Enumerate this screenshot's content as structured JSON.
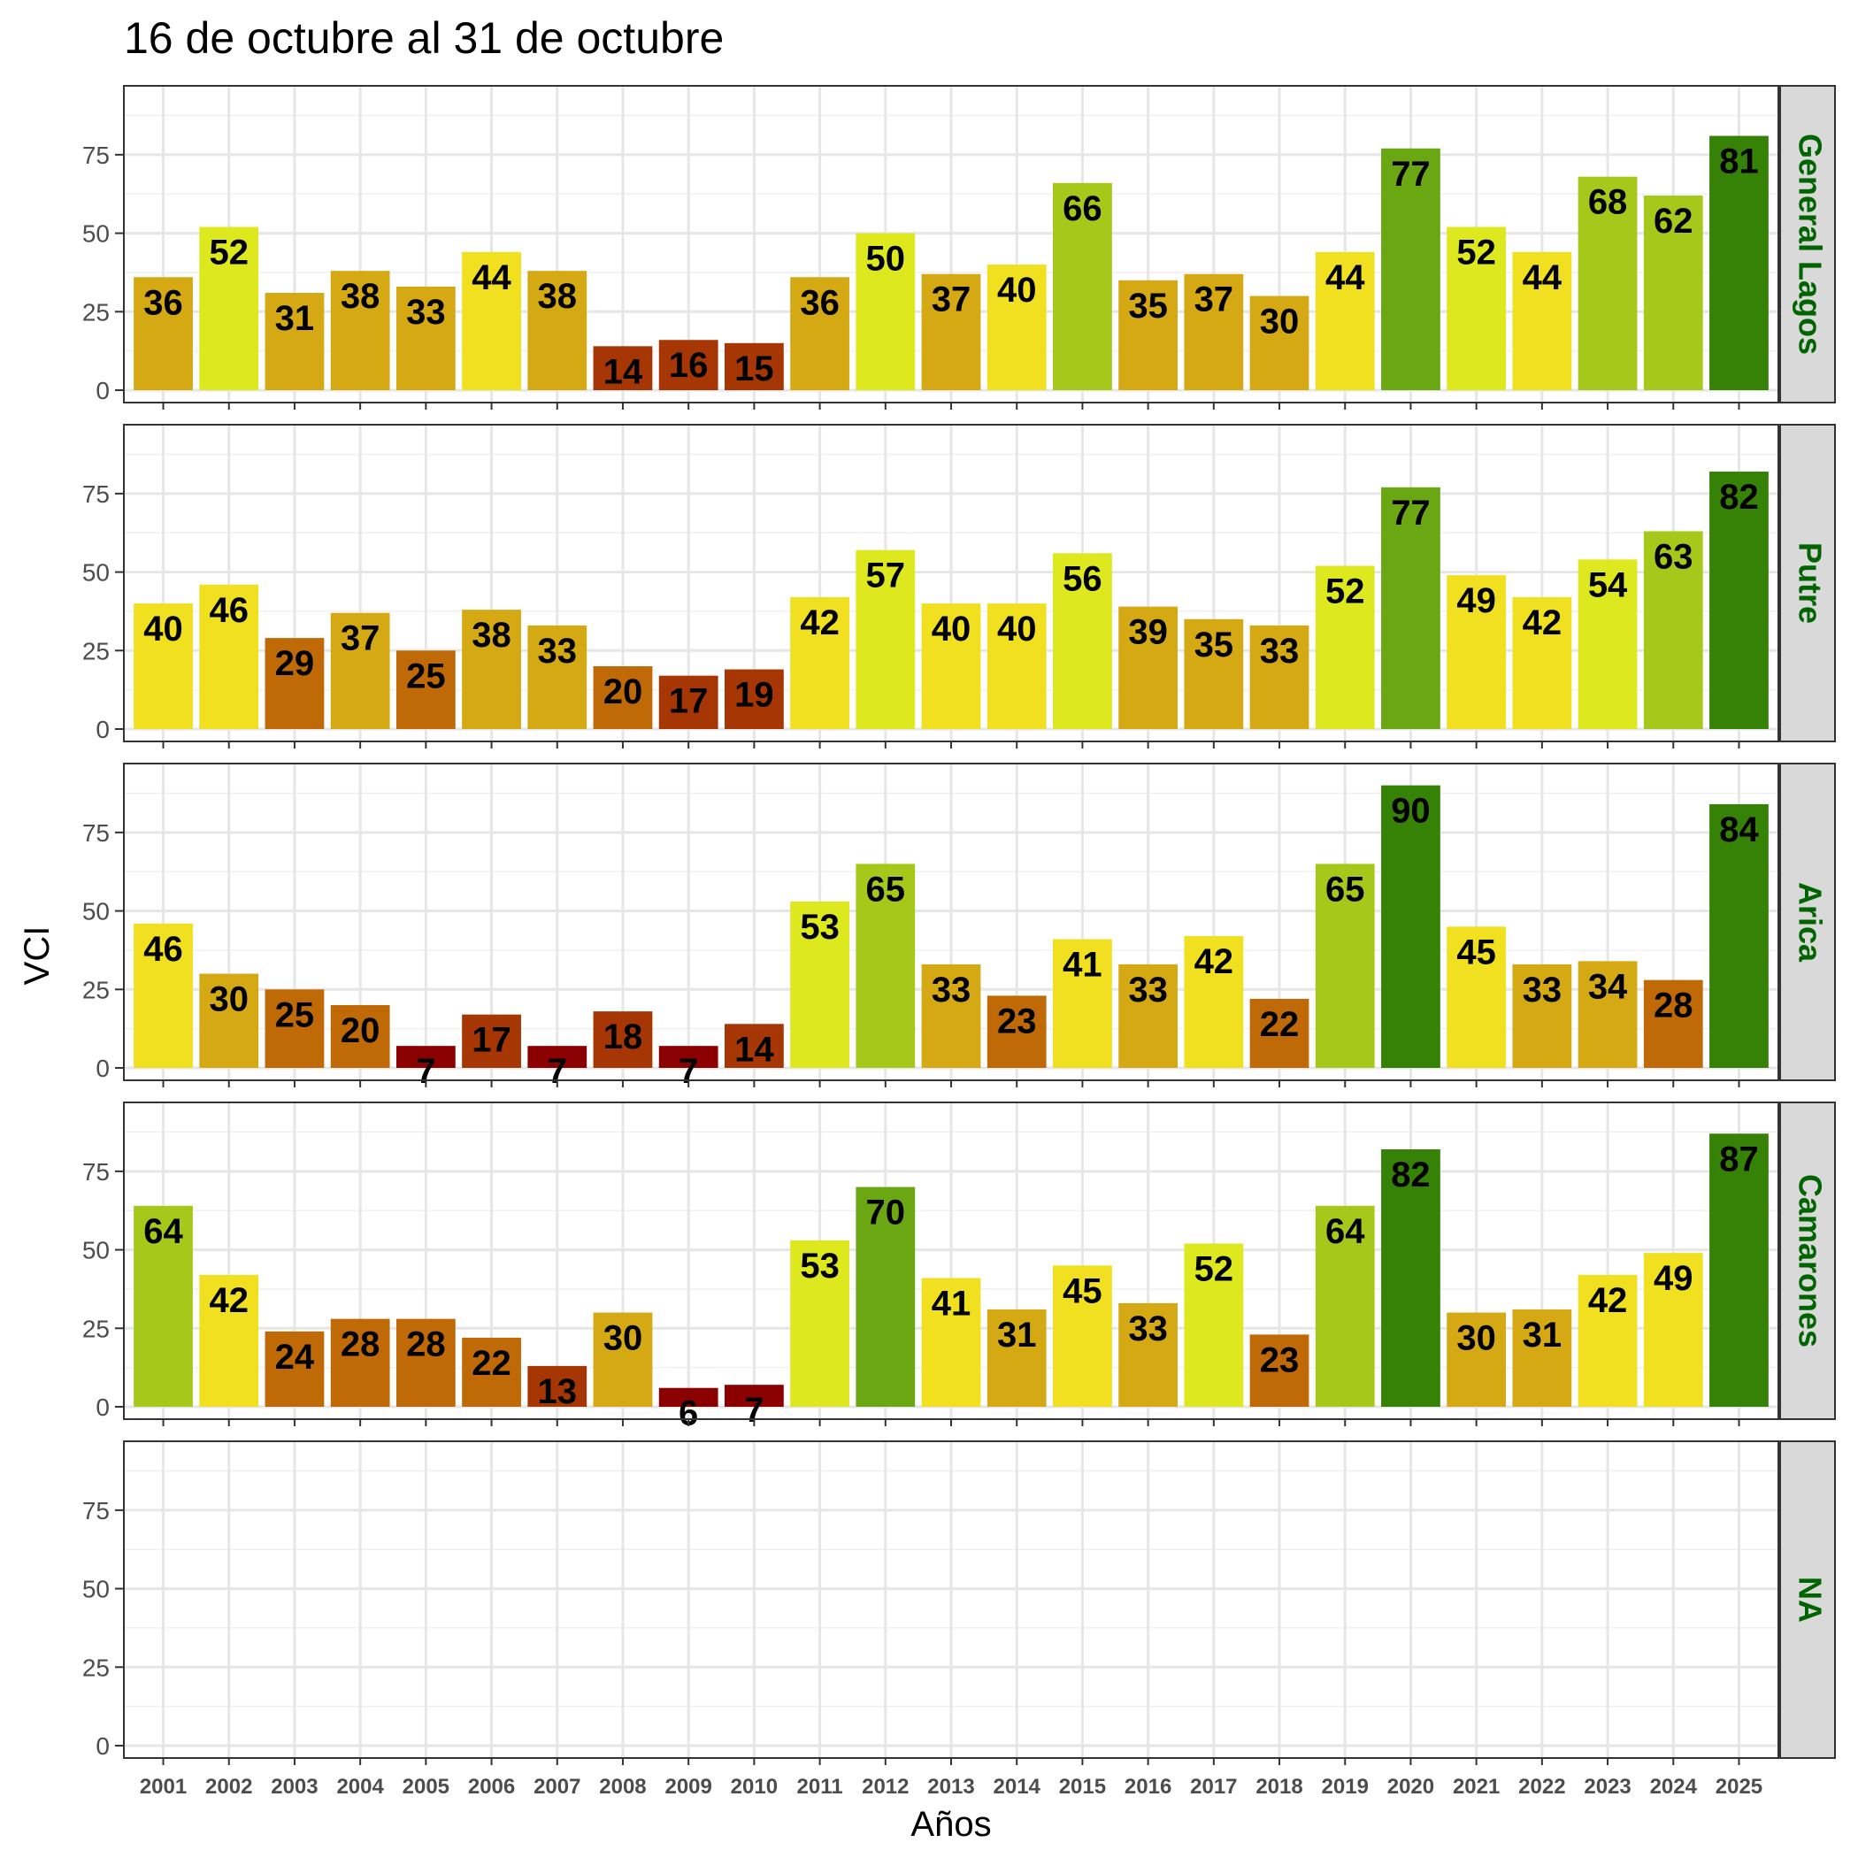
{
  "chart_data": {
    "type": "bar",
    "title": "16 de octubre al 31 de octubre",
    "xlabel": "Años",
    "ylabel": "VCI",
    "ylim": [
      0,
      93
    ],
    "yticks": [
      "0",
      "25",
      "50",
      "75"
    ],
    "categories": [
      "2001",
      "2002",
      "2003",
      "2004",
      "2005",
      "2006",
      "2007",
      "2008",
      "2009",
      "2010",
      "2011",
      "2012",
      "2013",
      "2014",
      "2015",
      "2016",
      "2017",
      "2018",
      "2019",
      "2020",
      "2021",
      "2022",
      "2023",
      "2024",
      "2025"
    ],
    "strip_color": "#006400",
    "panels": [
      {
        "name": "General Lagos",
        "values": [
          36,
          52,
          31,
          38,
          33,
          44,
          38,
          14,
          16,
          15,
          36,
          50,
          37,
          40,
          66,
          35,
          37,
          30,
          44,
          77,
          52,
          44,
          68,
          62,
          81
        ]
      },
      {
        "name": "Putre",
        "values": [
          40,
          46,
          29,
          37,
          25,
          38,
          33,
          20,
          17,
          19,
          42,
          57,
          40,
          40,
          56,
          39,
          35,
          33,
          52,
          77,
          49,
          42,
          54,
          63,
          82
        ]
      },
      {
        "name": "Arica",
        "values": [
          46,
          30,
          25,
          20,
          7,
          17,
          7,
          18,
          7,
          14,
          53,
          65,
          33,
          23,
          41,
          33,
          42,
          22,
          65,
          90,
          45,
          33,
          34,
          28,
          84
        ]
      },
      {
        "name": "Camarones",
        "values": [
          64,
          42,
          24,
          28,
          28,
          22,
          13,
          30,
          6,
          7,
          53,
          70,
          41,
          31,
          45,
          33,
          52,
          23,
          64,
          82,
          30,
          31,
          42,
          49,
          87
        ]
      },
      {
        "name": "NA",
        "values": []
      }
    ],
    "color_scale": [
      {
        "min": 0,
        "color": "#8b0000"
      },
      {
        "min": 10,
        "color": "#a63603"
      },
      {
        "min": 20,
        "color": "#bf6a06"
      },
      {
        "min": 30,
        "color": "#d5a914"
      },
      {
        "min": 40,
        "color": "#f0e020"
      },
      {
        "min": 50,
        "color": "#dde81e"
      },
      {
        "min": 60,
        "color": "#a6c81a"
      },
      {
        "min": 70,
        "color": "#6aa713"
      },
      {
        "min": 80,
        "color": "#368207"
      }
    ]
  }
}
